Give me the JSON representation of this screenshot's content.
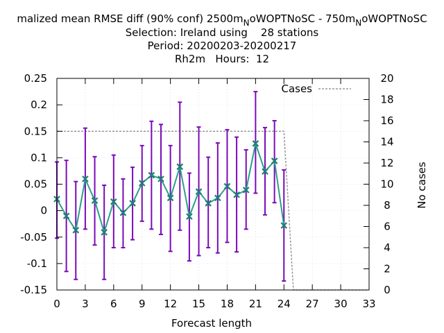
{
  "chart_data": {
    "type": "line",
    "title": {
      "line1": {
        "pre": "malized mean RMSE diff (90% conf) 2500m",
        "sub1": "N",
        "mid": "oWOPTNoSC - 750m",
        "sub2": "N",
        "post": "oWOPTNoSC"
      },
      "line2": "Selection: Ireland using    28 stations",
      "line3": "Period: 20200203-20200217",
      "line4": "Rh2m   Hours:  12"
    },
    "xlabel": "Forecast length",
    "ylabel": "",
    "y2label": "No cases",
    "xlim": [
      0,
      33
    ],
    "ylim": [
      -0.15,
      0.25
    ],
    "y2lim": [
      0,
      20
    ],
    "xticks": [
      "0",
      "3",
      "6",
      "9",
      "12",
      "15",
      "18",
      "21",
      "24",
      "27",
      "30",
      "33"
    ],
    "yticks": [
      "0.25",
      "0.2",
      "0.15",
      "0.1",
      "0.05",
      "0",
      "-0.05",
      "-0.1",
      "-0.15"
    ],
    "y2ticks": [
      "20",
      "18",
      "16",
      "14",
      "12",
      "10",
      "8",
      "6",
      "4",
      "2",
      "0"
    ],
    "legend": {
      "label": "Cases",
      "placement": "top-right"
    },
    "colors": {
      "line": "#2a9f8a",
      "marker": "#1b7e70",
      "errorbar": "#7a0ab8",
      "cases": "#999999"
    },
    "series": [
      {
        "x": [
          0,
          1,
          2,
          3,
          4,
          5,
          6,
          7,
          8,
          9,
          10,
          11,
          12,
          13,
          14,
          15,
          16,
          17,
          18,
          19,
          20,
          21,
          22,
          23,
          24
        ],
        "values": [
          0.022,
          -0.01,
          -0.037,
          0.06,
          0.019,
          -0.041,
          0.017,
          -0.004,
          0.014,
          0.052,
          0.067,
          0.06,
          0.024,
          0.083,
          -0.011,
          0.036,
          0.014,
          0.024,
          0.046,
          0.03,
          0.039,
          0.127,
          0.074,
          0.094,
          -0.028
        ],
        "lower": [
          -0.052,
          -0.115,
          -0.13,
          -0.035,
          -0.065,
          -0.13,
          -0.07,
          -0.07,
          -0.055,
          -0.02,
          -0.035,
          -0.045,
          -0.077,
          -0.037,
          -0.095,
          -0.085,
          -0.07,
          -0.08,
          -0.06,
          -0.078,
          -0.035,
          0.033,
          -0.008,
          0.015,
          -0.133
        ],
        "upper": [
          0.092,
          0.095,
          0.055,
          0.156,
          0.102,
          0.048,
          0.105,
          0.06,
          0.082,
          0.123,
          0.169,
          0.163,
          0.123,
          0.205,
          0.071,
          0.158,
          0.101,
          0.128,
          0.153,
          0.139,
          0.115,
          0.225,
          0.157,
          0.17,
          0.077
        ]
      }
    ],
    "cases": {
      "x": [
        0,
        24,
        25,
        33
      ],
      "values": [
        15,
        15,
        0,
        0
      ]
    }
  }
}
